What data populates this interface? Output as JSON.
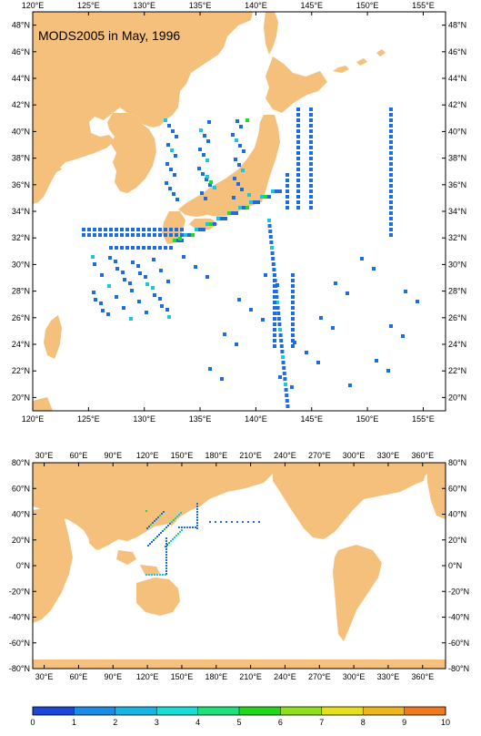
{
  "title": "MODS2005 in May, 1996",
  "colors": {
    "land": "#f4c07c",
    "ocean": "#ffffff",
    "frame": "#000000",
    "obs_low": "#1c6ee0",
    "obs_mid": "#19c8e0",
    "obs_high": "#19e01c"
  },
  "regional_map": {
    "lon_range": [
      120,
      157
    ],
    "lat_range": [
      19,
      49
    ],
    "lon_ticks": [
      {
        "lon": 120,
        "label": "120°E"
      },
      {
        "lon": 125,
        "label": "125°E"
      },
      {
        "lon": 130,
        "label": "130°E"
      },
      {
        "lon": 135,
        "label": "135°E"
      },
      {
        "lon": 140,
        "label": "140°E"
      },
      {
        "lon": 145,
        "label": "145°E"
      },
      {
        "lon": 150,
        "label": "150°E"
      },
      {
        "lon": 155,
        "label": "155°E"
      }
    ],
    "lat_ticks": [
      {
        "lat": 48,
        "label": "48°N"
      },
      {
        "lat": 46,
        "label": "46°N"
      },
      {
        "lat": 44,
        "label": "44°N"
      },
      {
        "lat": 42,
        "label": "42°N"
      },
      {
        "lat": 40,
        "label": "40°N"
      },
      {
        "lat": 38,
        "label": "38°N"
      },
      {
        "lat": 36,
        "label": "36°N"
      },
      {
        "lat": 34,
        "label": "34°N"
      },
      {
        "lat": 32,
        "label": "32°N"
      },
      {
        "lat": 30,
        "label": "30°N"
      },
      {
        "lat": 28,
        "label": "28°N"
      },
      {
        "lat": 26,
        "label": "26°N"
      },
      {
        "lat": 24,
        "label": "24°N"
      },
      {
        "lat": 22,
        "label": "22°N"
      },
      {
        "lat": 20,
        "label": "20°N"
      }
    ]
  },
  "global_map": {
    "lon_range": [
      20,
      380
    ],
    "lat_range": [
      -80,
      80
    ],
    "lon_ticks": [
      {
        "lon": 30,
        "label": "30°E"
      },
      {
        "lon": 60,
        "label": "60°E"
      },
      {
        "lon": 90,
        "label": "90°E"
      },
      {
        "lon": 120,
        "label": "120°E"
      },
      {
        "lon": 150,
        "label": "150°E"
      },
      {
        "lon": 180,
        "label": "180°E"
      },
      {
        "lon": 210,
        "label": "210°E"
      },
      {
        "lon": 240,
        "label": "240°E"
      },
      {
        "lon": 270,
        "label": "270°E"
      },
      {
        "lon": 300,
        "label": "300°E"
      },
      {
        "lon": 330,
        "label": "330°E"
      },
      {
        "lon": 360,
        "label": "360°E"
      }
    ],
    "lat_ticks": [
      {
        "lat": 80,
        "label": "80°N"
      },
      {
        "lat": 60,
        "label": "60°N"
      },
      {
        "lat": 40,
        "label": "40°N"
      },
      {
        "lat": 20,
        "label": "20°N"
      },
      {
        "lat": 0,
        "label": "0°N"
      },
      {
        "lat": -20,
        "label": "-20°N"
      },
      {
        "lat": -40,
        "label": "-40°N"
      },
      {
        "lat": -60,
        "label": "-60°N"
      },
      {
        "lat": -80,
        "label": "-80°N"
      }
    ]
  },
  "colorbar": {
    "labels": [
      "0",
      "1",
      "2",
      "3",
      "4",
      "5",
      "6",
      "7",
      "8",
      "9",
      "10"
    ],
    "colors": [
      "#1c46d6",
      "#1a8ce6",
      "#19b4e6",
      "#19dcd6",
      "#1ee07a",
      "#22d61c",
      "#8ee01c",
      "#e6e01c",
      "#f0b41c",
      "#f07a1c"
    ]
  }
}
